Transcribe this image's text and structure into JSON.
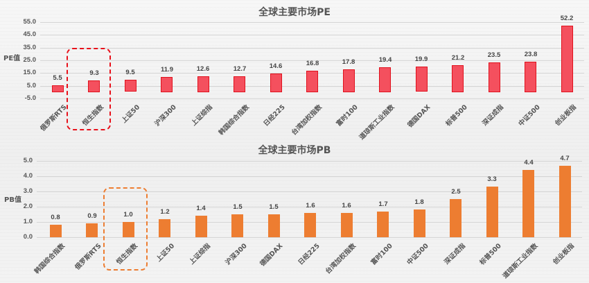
{
  "chart_data": [
    {
      "type": "bar",
      "title": "全球主要市场PE",
      "xlabel": "",
      "ylabel": "PE值",
      "ylim": [
        -5,
        55
      ],
      "yticks": [
        "55.0",
        "45.0",
        "35.0",
        "25.0",
        "15.0",
        "5.0",
        "-5.0"
      ],
      "grid": true,
      "categories": [
        "俄罗斯RTS",
        "恒生指数",
        "上证50",
        "沪深300",
        "上证综指",
        "韩国综合指数",
        "日经225",
        "台湾加权指数",
        "富时100",
        "道琼斯工业指数",
        "德国DAX",
        "标普500",
        "深证成指",
        "中证500",
        "创业板指"
      ],
      "values": [
        5.5,
        9.3,
        9.5,
        11.9,
        12.6,
        12.7,
        14.6,
        16.8,
        17.8,
        19.4,
        19.9,
        21.2,
        23.5,
        23.8,
        52.2
      ],
      "labels": [
        "5.5",
        "9.3",
        "9.5",
        "11.9",
        "12.6",
        "12.7",
        "14.6",
        "16.8",
        "17.8",
        "19.4",
        "19.9",
        "21.2",
        "23.5",
        "23.8",
        "52.2"
      ],
      "bar_color": "#f4505e",
      "bar_border": "#e0101c",
      "highlight": {
        "category": "恒生指数",
        "style": "dashed-rounded-box",
        "color": "#e8101a"
      }
    },
    {
      "type": "bar",
      "title": "全球主要市场PB",
      "xlabel": "",
      "ylabel": "PB值",
      "ylim": [
        0,
        5
      ],
      "yticks": [
        "5.0",
        "4.0",
        "3.0",
        "2.0",
        "1.0",
        "0.0"
      ],
      "grid": true,
      "categories": [
        "韩国综合指数",
        "俄罗斯RTS",
        "恒生指数",
        "上证50",
        "上证综指",
        "沪深300",
        "德国DAX",
        "日经225",
        "台湾加权指数",
        "富时100",
        "中证500",
        "深证成指",
        "标普500",
        "道琼斯工业指数",
        "创业板指"
      ],
      "values": [
        0.8,
        0.9,
        1.0,
        1.2,
        1.4,
        1.5,
        1.5,
        1.6,
        1.6,
        1.7,
        1.8,
        2.5,
        3.3,
        4.4,
        4.7
      ],
      "labels": [
        "0.8",
        "0.9",
        "1.0",
        "1.2",
        "1.4",
        "1.5",
        "1.5",
        "1.6",
        "1.6",
        "1.7",
        "1.8",
        "2.5",
        "3.3",
        "4.4",
        "4.7"
      ],
      "bar_color": "#ed7d31",
      "highlight": {
        "category": "恒生指数",
        "style": "dashed-rounded-box",
        "color": "#ed7d31"
      }
    }
  ]
}
